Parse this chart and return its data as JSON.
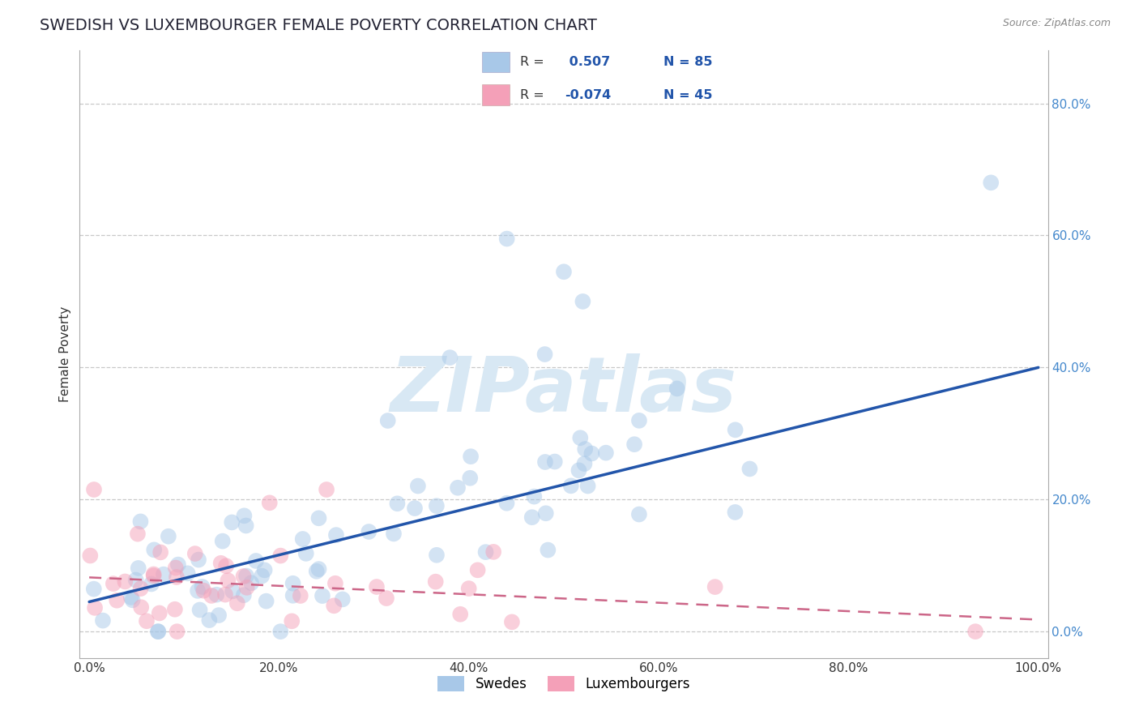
{
  "title": "SWEDISH VS LUXEMBOURGER FEMALE POVERTY CORRELATION CHART",
  "source": "Source: ZipAtlas.com",
  "xlabel": "",
  "ylabel": "Female Poverty",
  "xlim": [
    -0.01,
    1.01
  ],
  "ylim": [
    -0.04,
    0.88
  ],
  "yticks": [
    0,
    0.2,
    0.4,
    0.6,
    0.8
  ],
  "ytick_labels": [
    "0.0%",
    "20.0%",
    "40.0%",
    "60.0%",
    "80.0%"
  ],
  "xticks": [
    0,
    0.2,
    0.4,
    0.6,
    0.8,
    1.0
  ],
  "xtick_labels": [
    "0.0%",
    "20.0%",
    "40.0%",
    "60.0%",
    "80.0%",
    "100.0%"
  ],
  "blue_R": 0.507,
  "blue_N": 85,
  "pink_R": -0.074,
  "pink_N": 45,
  "blue_color": "#A8C8E8",
  "pink_color": "#F4A0B8",
  "blue_line_color": "#2255AA",
  "pink_line_color": "#CC6688",
  "grid_color": "#C8C8C8",
  "watermark": "ZIPatlas",
  "watermark_color": "#D8E8F4",
  "legend_label_blue": "Swedes",
  "legend_label_pink": "Luxembourgers",
  "title_fontsize": 14,
  "axis_label_fontsize": 11,
  "tick_fontsize": 11,
  "scatter_size": 200,
  "scatter_alpha": 0.5,
  "background_color": "#FFFFFF",
  "blue_line_start_y": 0.045,
  "blue_line_end_y": 0.4,
  "pink_line_start_y": 0.082,
  "pink_line_end_y": 0.018
}
